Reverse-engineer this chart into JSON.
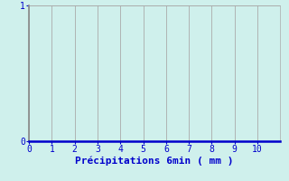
{
  "title": "",
  "xlabel": "Précipitations 6min ( mm )",
  "xlim": [
    0,
    11
  ],
  "ylim": [
    0,
    1
  ],
  "xticks": [
    0,
    1,
    2,
    3,
    4,
    5,
    6,
    7,
    8,
    9,
    10
  ],
  "yticks": [
    0,
    1
  ],
  "background_color": "#cff0ec",
  "plot_bg_color": "#cff0ec",
  "grid_color": "#aaaaaa",
  "axis_color": "#0000cc",
  "tick_label_color": "#0000cc",
  "xlabel_color": "#0000cc",
  "xlabel_fontsize": 8,
  "tick_fontsize": 7,
  "grid_linewidth": 0.6,
  "spine_left_color": "#888888",
  "spine_right_color": "#aaaaaa",
  "spine_top_color": "#aaaaaa",
  "spine_bottom_color": "#0000cc"
}
